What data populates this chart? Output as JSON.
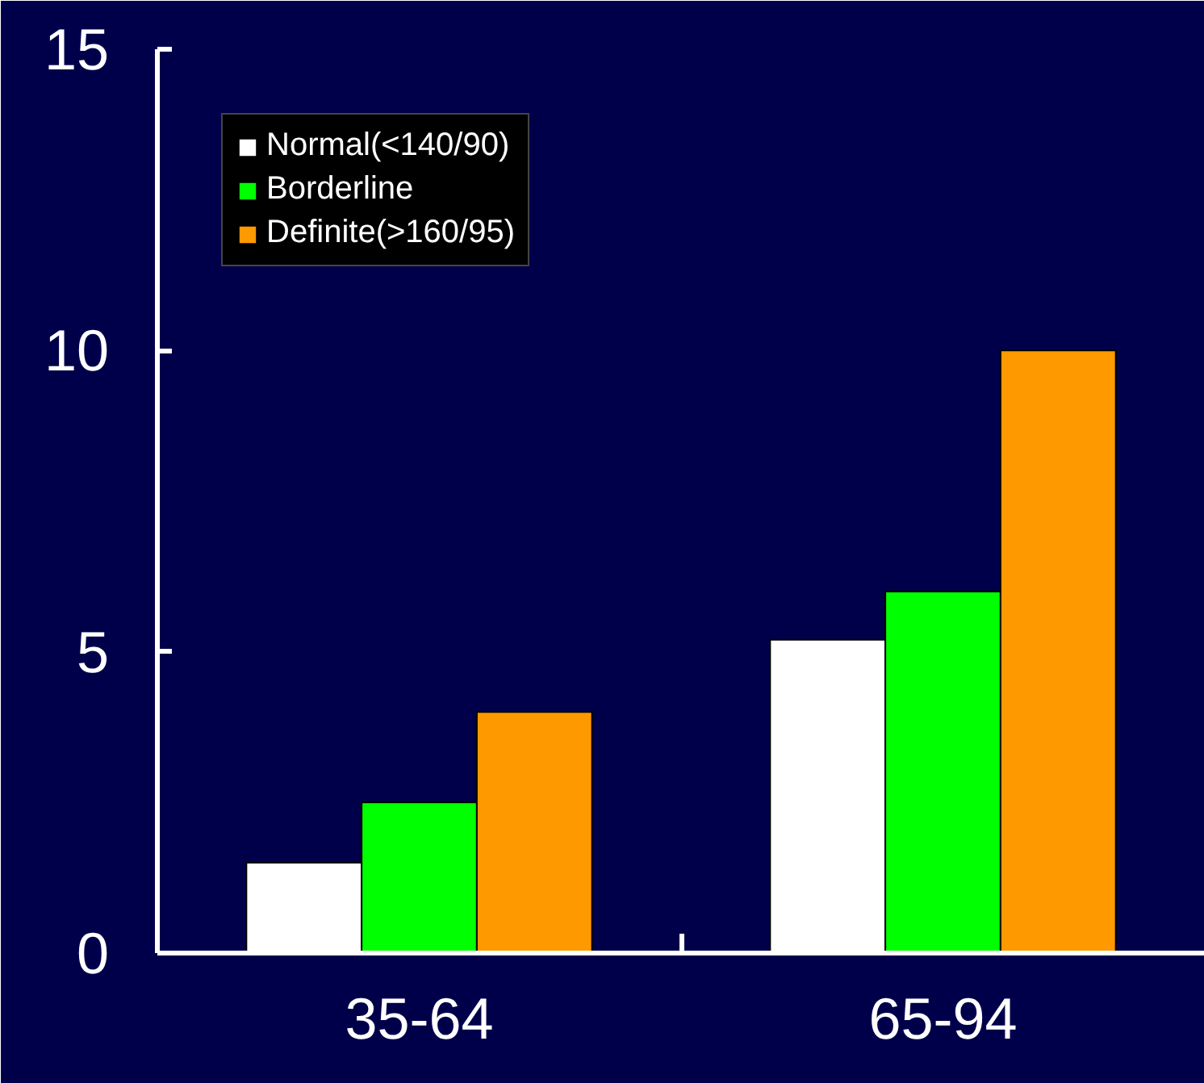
{
  "chart_data": {
    "type": "bar",
    "categories": [
      "35-64",
      "65-94"
    ],
    "series": [
      {
        "name": "Normal(<140/90)",
        "color": "#ffffff",
        "values": [
          1.5,
          5.2
        ]
      },
      {
        "name": "Borderline",
        "color": "#00ff00",
        "values": [
          2.5,
          6
        ]
      },
      {
        "name": "Definite(>160/95)",
        "color": "#ff9900",
        "values": [
          4,
          10
        ]
      }
    ],
    "ylim": [
      0,
      15
    ],
    "yticks": [
      0,
      5,
      10,
      15
    ],
    "grid": false,
    "legend": "top left"
  }
}
